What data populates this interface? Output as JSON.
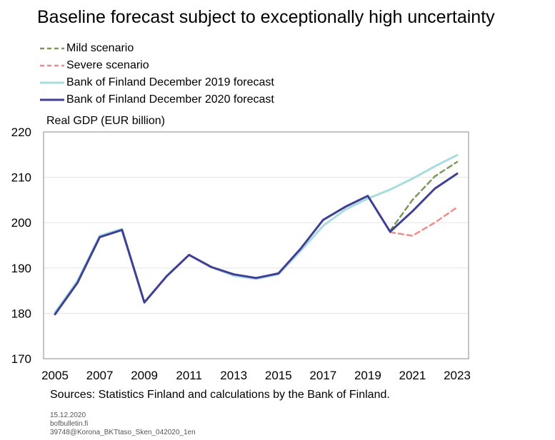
{
  "chart_data": {
    "type": "line",
    "title": "Baseline forecast subject to exceptionally high uncertainty",
    "ylabel": "Real GDP (EUR billion)",
    "xlabel": "",
    "ylim": [
      170,
      220
    ],
    "yticks": [
      170,
      180,
      190,
      200,
      210,
      220
    ],
    "xlim": [
      2005,
      2023
    ],
    "xticks": [
      2005,
      2007,
      2009,
      2011,
      2013,
      2015,
      2017,
      2019,
      2021,
      2023
    ],
    "grid": "horizontal",
    "legend_position": "top-left",
    "series": [
      {
        "name": "Mild scenario",
        "color": "#7a9a5a",
        "style": "dashed",
        "x": [
          2020,
          2021,
          2022,
          2023
        ],
        "y": [
          198.2,
          205.0,
          210.2,
          213.4
        ]
      },
      {
        "name": "Severe scenario",
        "color": "#f08c8c",
        "style": "dashed",
        "x": [
          2020,
          2021,
          2022,
          2023
        ],
        "y": [
          197.9,
          197.1,
          200.0,
          203.4
        ]
      },
      {
        "name": "Bank of Finland December 2019 forecast",
        "color": "#a8dcde",
        "style": "solid",
        "x": [
          2005,
          2006,
          2007,
          2008,
          2009,
          2010,
          2011,
          2012,
          2013,
          2014,
          2015,
          2016,
          2017,
          2018,
          2019,
          2020,
          2021,
          2022,
          2023
        ],
        "y": [
          180.2,
          187.1,
          197.1,
          198.6,
          182.4,
          188.2,
          192.9,
          190.2,
          188.3,
          187.6,
          188.6,
          193.8,
          199.3,
          202.9,
          205.3,
          207.3,
          209.7,
          212.4,
          214.9
        ]
      },
      {
        "name": "Bank of Finland December 2020 forecast",
        "color": "#3f3f96",
        "style": "solid",
        "x": [
          2005,
          2006,
          2007,
          2008,
          2009,
          2010,
          2011,
          2012,
          2013,
          2014,
          2015,
          2016,
          2017,
          2018,
          2019,
          2020,
          2021,
          2022,
          2023
        ],
        "y": [
          179.8,
          186.7,
          196.8,
          198.4,
          182.4,
          188.2,
          192.9,
          190.2,
          188.6,
          187.8,
          188.8,
          194.3,
          200.6,
          203.5,
          205.9,
          198.0,
          202.5,
          207.5,
          210.8
        ]
      }
    ],
    "source_note": "Sources: Statistics Finland and calculations by the Bank of Finland.",
    "footer": [
      "15.12.2020",
      "bofbulletin.fi",
      "39748@Korona_BKTtaso_Sken_042020_1en"
    ]
  }
}
